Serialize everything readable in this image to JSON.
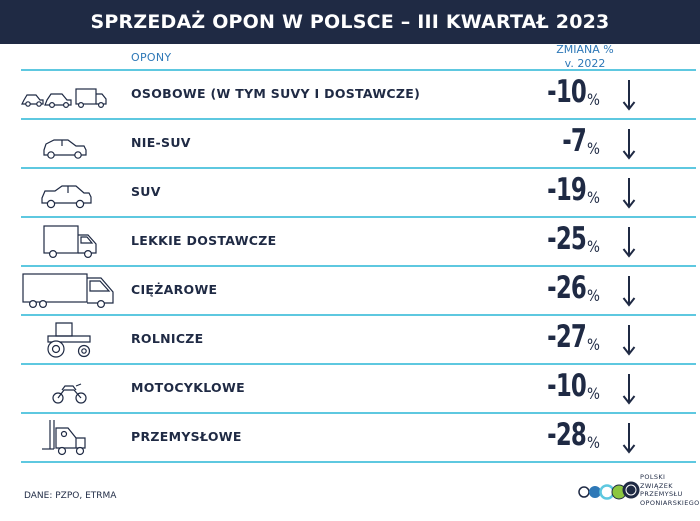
{
  "header": {
    "title": "SPRZEDAŻ OPON W POLSCE – III KWARTAŁ 2023"
  },
  "columns": {
    "category": "OPONY",
    "change_line1": "ZMIANA %",
    "change_line2": "v. 2022"
  },
  "chart_data": {
    "type": "table",
    "title": "SPRZEDAŻ OPON W POLSCE – III KWARTAŁ 2023",
    "columns": [
      "OPONY",
      "ZMIANA % v. 2022"
    ],
    "rows": [
      {
        "category": "OSOBOWE (W TYM SUVY I DOSTAWCZE)",
        "change": "-10",
        "unit": "%",
        "icon": "cars-group-icon"
      },
      {
        "category": "NIE-SUV",
        "change": "-7",
        "unit": "%",
        "icon": "sedan-car-icon"
      },
      {
        "category": "SUV",
        "change": "-19",
        "unit": "%",
        "icon": "suv-car-icon"
      },
      {
        "category": "LEKKIE DOSTAWCZE",
        "change": "-25",
        "unit": "%",
        "icon": "delivery-van-icon"
      },
      {
        "category": "CIĘŻAROWE",
        "change": "-26",
        "unit": "%",
        "icon": "truck-icon"
      },
      {
        "category": "ROLNICZE",
        "change": "-27",
        "unit": "%",
        "icon": "tractor-icon"
      },
      {
        "category": "MOTOCYKLOWE",
        "change": "-10",
        "unit": "%",
        "icon": "motorcycle-icon"
      },
      {
        "category": "PRZEMYSŁOWE",
        "change": "-28",
        "unit": "%",
        "icon": "forklift-icon"
      }
    ],
    "trend": "down"
  },
  "footer": {
    "source": "DANE: PZPO, ETRMA",
    "logo_lines": [
      "POLSKI",
      "ZWIĄZEK",
      "PRZEMYSŁU",
      "OPONIARSKIEGO"
    ],
    "logo_colors": [
      "#1f2a44",
      "#2e78b7",
      "#5ec8e0",
      "#8cc63f",
      "#1f2a44"
    ]
  },
  "colors": {
    "navy": "#1f2a44",
    "accent_blue": "#2e78b7",
    "separator": "#5ec8e0"
  }
}
